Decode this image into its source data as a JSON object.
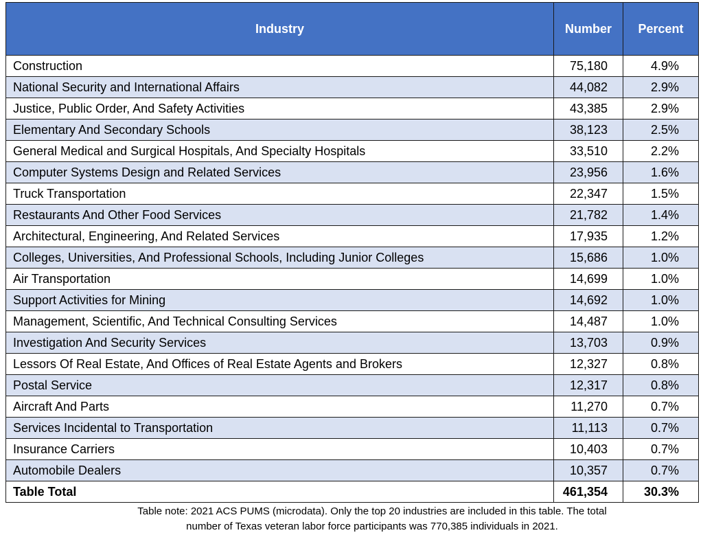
{
  "table": {
    "headers": {
      "industry": "Industry",
      "number": "Number",
      "percent": "Percent"
    },
    "rows": [
      {
        "industry": "Construction",
        "number": "75,180",
        "percent": "4.9%"
      },
      {
        "industry": "National Security and International Affairs",
        "number": "44,082",
        "percent": "2.9%"
      },
      {
        "industry": "Justice, Public Order, And Safety Activities",
        "number": "43,385",
        "percent": "2.9%"
      },
      {
        "industry": "Elementary And Secondary Schools",
        "number": "38,123",
        "percent": "2.5%"
      },
      {
        "industry": "General Medical and Surgical Hospitals, And Specialty Hospitals",
        "number": "33,510",
        "percent": "2.2%"
      },
      {
        "industry": "Computer Systems Design and Related Services",
        "number": "23,956",
        "percent": "1.6%"
      },
      {
        "industry": "Truck Transportation",
        "number": "22,347",
        "percent": "1.5%"
      },
      {
        "industry": "Restaurants And Other Food Services",
        "number": "21,782",
        "percent": "1.4%"
      },
      {
        "industry": "Architectural, Engineering, And Related Services",
        "number": "17,935",
        "percent": "1.2%"
      },
      {
        "industry": "Colleges, Universities, And Professional Schools, Including Junior Colleges",
        "number": "15,686",
        "percent": "1.0%"
      },
      {
        "industry": "Air Transportation",
        "number": "14,699",
        "percent": "1.0%"
      },
      {
        "industry": "Support Activities for Mining",
        "number": "14,692",
        "percent": "1.0%"
      },
      {
        "industry": "Management, Scientific, And Technical Consulting Services",
        "number": "14,487",
        "percent": "1.0%"
      },
      {
        "industry": "Investigation And Security Services",
        "number": "13,703",
        "percent": "0.9%"
      },
      {
        "industry": "Lessors Of Real Estate, And Offices of Real Estate Agents and Brokers",
        "number": "12,327",
        "percent": "0.8%"
      },
      {
        "industry": "Postal Service",
        "number": "12,317",
        "percent": "0.8%"
      },
      {
        "industry": "Aircraft And Parts",
        "number": "11,270",
        "percent": "0.7%"
      },
      {
        "industry": "Services Incidental to Transportation",
        "number": "11,113",
        "percent": "0.7%"
      },
      {
        "industry": "Insurance Carriers",
        "number": "10,403",
        "percent": "0.7%"
      },
      {
        "industry": "Automobile Dealers",
        "number": "10,357",
        "percent": "0.7%"
      }
    ],
    "total": {
      "industry": "Table Total",
      "number": "461,354",
      "percent": "30.3%"
    }
  },
  "note": {
    "line1": "Table note: 2021 ACS PUMS (microdata). Only the top 20 industries are included in this table. The total",
    "line2": "number of Texas veteran labor force participants was 770,385 individuals in 2021."
  },
  "colors": {
    "header_bg": "#4472C4",
    "alt_row_bg": "#D9E1F2",
    "header_text": "#FFFFFF"
  }
}
